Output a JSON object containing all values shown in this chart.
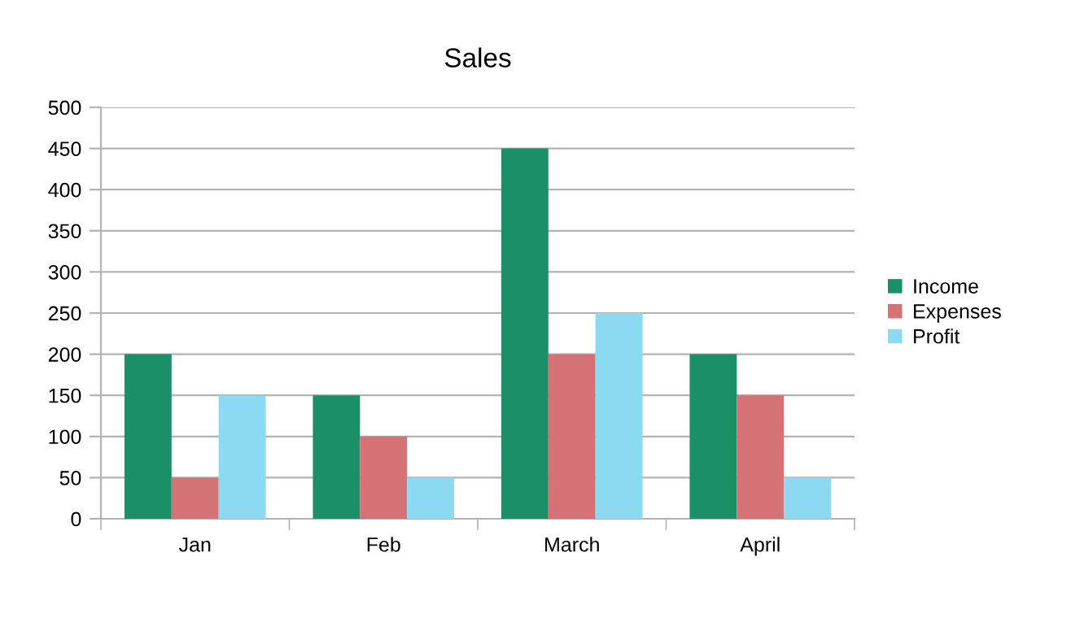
{
  "chart_data": {
    "type": "bar",
    "title": "Sales",
    "categories": [
      "Jan",
      "Feb",
      "March",
      "April"
    ],
    "series": [
      {
        "name": "Income",
        "color": "#1b9068",
        "values": [
          200,
          150,
          450,
          200
        ]
      },
      {
        "name": "Expenses",
        "color": "#d47276",
        "values": [
          50,
          100,
          200,
          150
        ]
      },
      {
        "name": "Profit",
        "color": "#8bdaf2",
        "values": [
          150,
          50,
          250,
          50
        ]
      }
    ],
    "ylim": [
      0,
      500
    ],
    "yticks": [
      0,
      50,
      100,
      150,
      200,
      250,
      300,
      350,
      400,
      450,
      500
    ],
    "grid": "y",
    "legend": "right"
  }
}
